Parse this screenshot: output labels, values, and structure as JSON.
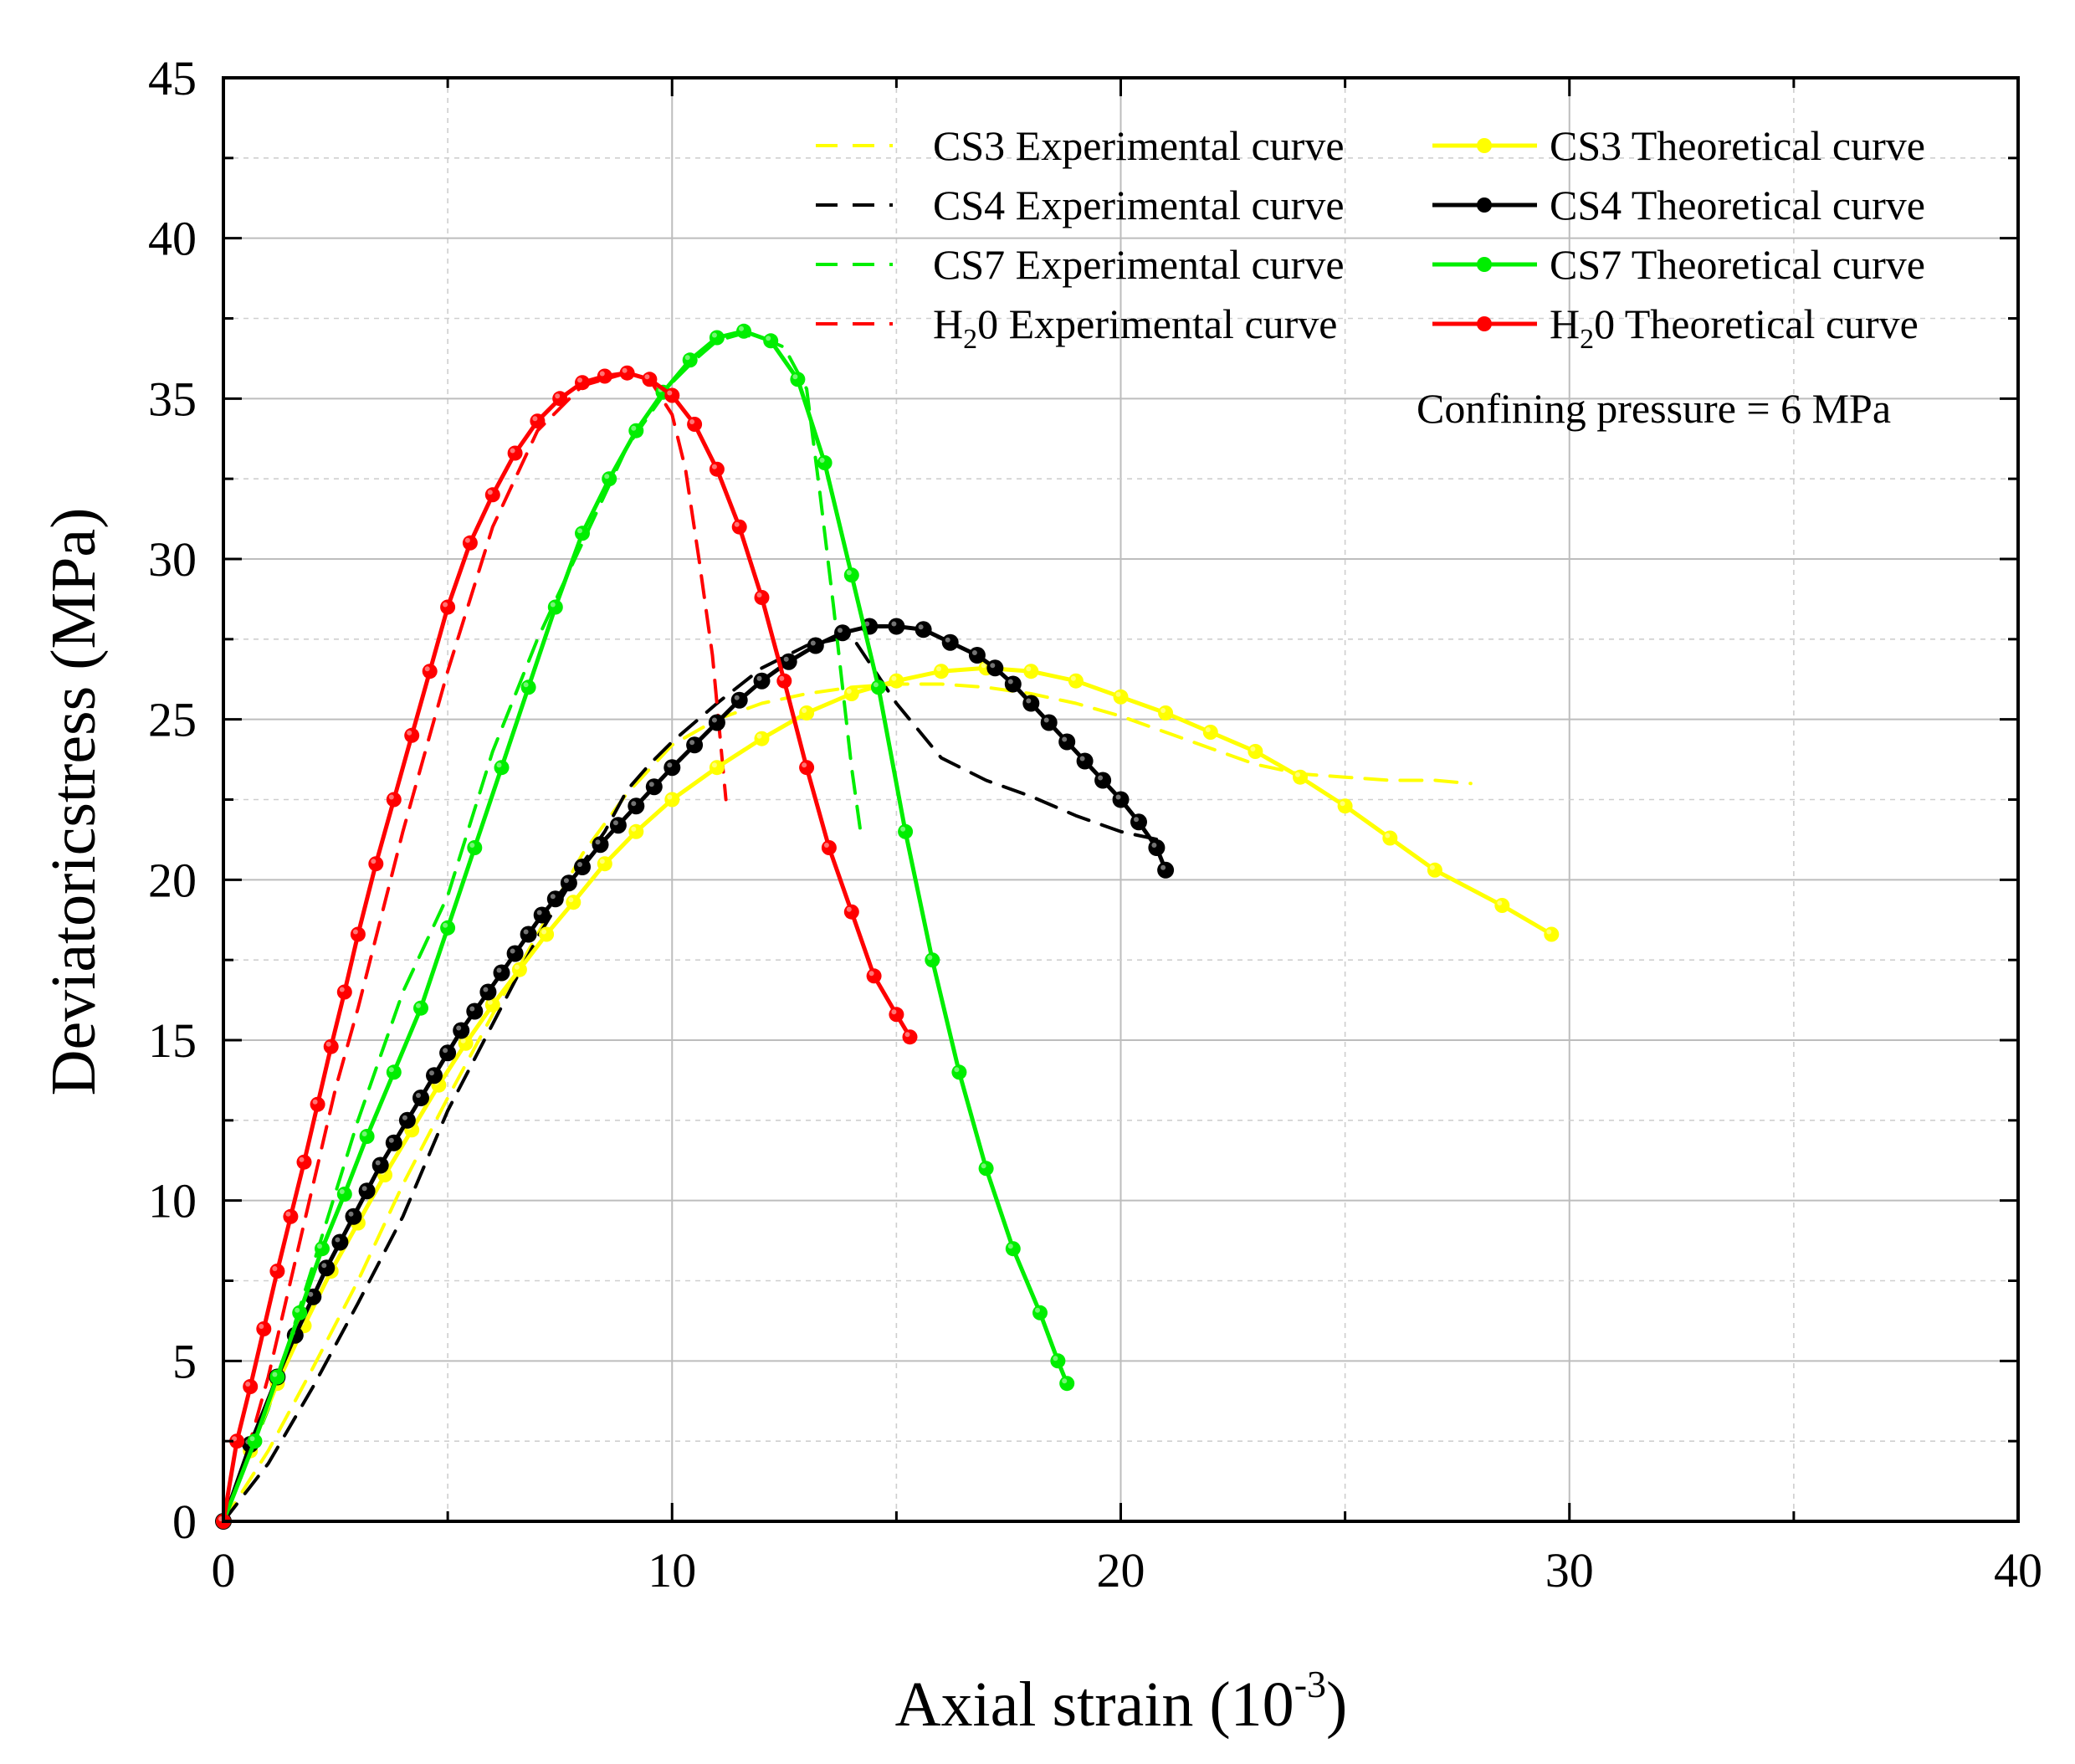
{
  "chart_data": {
    "type": "line",
    "title": "",
    "xlabel": "Axial strain (10",
    "xlabel_sup": "-3",
    "xlabel_tail": ")",
    "ylabel": "Deviatoricstress (MPa)",
    "xlim": [
      0,
      40
    ],
    "ylim": [
      0,
      45
    ],
    "xticks": [
      0,
      10,
      20,
      30,
      40
    ],
    "yticks": [
      0,
      5,
      10,
      15,
      20,
      25,
      30,
      35,
      40,
      45
    ],
    "grid": true,
    "legend_position": "top-right",
    "annotation": "Confining pressure = 6 MPa",
    "colors": {
      "CS3": "#ffff00",
      "CS4": "#000000",
      "CS7": "#00ee00",
      "H2O": "#ff0000"
    },
    "legend": [
      {
        "label": "CS3 Experimental curve",
        "color": "#ffff00",
        "style": "dashed"
      },
      {
        "label": "CS4 Experimental curve",
        "color": "#000000",
        "style": "dashed"
      },
      {
        "label": "CS7 Experimental curve",
        "color": "#00ee00",
        "style": "dashed"
      },
      {
        "label_main": "H",
        "label_sub": "2",
        "label_rest": "0  Experimental curve",
        "color": "#ff0000",
        "style": "dashed"
      },
      {
        "label": "CS3 Theoretical curve",
        "color": "#ffff00",
        "style": "solid-marker"
      },
      {
        "label": "CS4 Theoretical curve",
        "color": "#000000",
        "style": "solid-marker"
      },
      {
        "label": "CS7 Theoretical curve",
        "color": "#00ee00",
        "style": "solid-marker"
      },
      {
        "label_main": "H",
        "label_sub": "2",
        "label_rest": "0  Theoretical curve",
        "color": "#ff0000",
        "style": "solid-marker"
      }
    ],
    "series": [
      {
        "name": "CS3 Experimental curve",
        "color": "#ffff00",
        "style": "dashed",
        "x": [
          0,
          1,
          2,
          3,
          4,
          5,
          6,
          7,
          8,
          9,
          10,
          11,
          12,
          13,
          14,
          15,
          16,
          17,
          18,
          19,
          20,
          21,
          22,
          23,
          24,
          25,
          26,
          27,
          27.8
        ],
        "y": [
          0,
          2.2,
          4.8,
          7.5,
          10.5,
          13.2,
          15.8,
          18.3,
          20.8,
          22.7,
          24.2,
          25.0,
          25.5,
          25.8,
          26.0,
          26.1,
          26.1,
          26.0,
          25.8,
          25.5,
          25.1,
          24.6,
          24.1,
          23.6,
          23.3,
          23.2,
          23.1,
          23.1,
          23.0
        ]
      },
      {
        "name": "CS4 Experimental curve",
        "color": "#000000",
        "style": "dashed",
        "x": [
          0,
          1,
          2,
          3,
          4,
          5,
          6,
          7,
          8,
          8.5,
          9,
          9.5,
          10,
          11,
          12,
          13,
          14,
          15,
          16,
          17,
          18,
          19,
          20,
          21
        ],
        "y": [
          0,
          1.8,
          4.2,
          6.8,
          9.5,
          12.8,
          15.5,
          18.2,
          20.5,
          21.5,
          22.8,
          23.6,
          24.3,
          25.5,
          26.6,
          27.3,
          27.6,
          25.5,
          23.8,
          23.1,
          22.6,
          22.0,
          21.5,
          21.2
        ]
      },
      {
        "name": "CS7 Experimental curve",
        "color": "#00ee00",
        "style": "dashed",
        "x": [
          0,
          1,
          2,
          3,
          4,
          5,
          6,
          7,
          8,
          9,
          10,
          10.5,
          11,
          11.5,
          12,
          12.5,
          13,
          13.3,
          13.6,
          13.8,
          14,
          14.2
        ],
        "y": [
          0,
          3.5,
          8.0,
          12.5,
          16.5,
          19.5,
          24.0,
          27.5,
          30.5,
          33.5,
          35.5,
          36.2,
          36.8,
          37.0,
          36.9,
          36.6,
          35.3,
          32.0,
          28.5,
          26.0,
          23.5,
          21.5
        ]
      },
      {
        "name": "H2O Experimental curve",
        "color": "#ff0000",
        "style": "dashed",
        "x": [
          0,
          0.5,
          1,
          1.5,
          2,
          2.5,
          3,
          4,
          5,
          6,
          7,
          8,
          9,
          9.5,
          10,
          10.3,
          10.6,
          10.9,
          11.1,
          11.2
        ],
        "y": [
          0,
          2.0,
          4.5,
          7.5,
          10.5,
          13.5,
          16.0,
          21.5,
          26.5,
          31.0,
          34.0,
          35.4,
          35.8,
          35.6,
          34.5,
          32.8,
          30.0,
          27.0,
          24.0,
          22.5
        ]
      },
      {
        "name": "CS3 Theoretical curve",
        "color": "#ffff00",
        "style": "solid",
        "marker_size": 9,
        "x": [
          0,
          0.6,
          1.2,
          1.8,
          2.4,
          3,
          3.6,
          4.2,
          4.8,
          5.4,
          6,
          6.6,
          7.2,
          7.8,
          8.5,
          9.2,
          10,
          11,
          12,
          13,
          14,
          15,
          16,
          17,
          18,
          19,
          20,
          21,
          22,
          23,
          24,
          25,
          26,
          27,
          28.5,
          29.6
        ],
        "y": [
          0,
          2.2,
          4.3,
          6.1,
          7.8,
          9.3,
          10.8,
          12.2,
          13.6,
          14.9,
          16.1,
          17.2,
          18.3,
          19.3,
          20.5,
          21.5,
          22.5,
          23.5,
          24.4,
          25.2,
          25.8,
          26.2,
          26.5,
          26.6,
          26.5,
          26.2,
          25.7,
          25.2,
          24.6,
          24.0,
          23.2,
          22.3,
          21.3,
          20.3,
          19.2,
          18.3
        ]
      },
      {
        "name": "CS4 Theoretical curve",
        "color": "#000000",
        "style": "solid",
        "marker_size": 10,
        "x": [
          0,
          0.6,
          1.2,
          1.6,
          2,
          2.3,
          2.6,
          2.9,
          3.2,
          3.5,
          3.8,
          4.1,
          4.4,
          4.7,
          5,
          5.3,
          5.6,
          5.9,
          6.2,
          6.5,
          6.8,
          7.1,
          7.4,
          7.7,
          8,
          8.4,
          8.8,
          9.2,
          9.6,
          10,
          10.5,
          11,
          11.5,
          12,
          12.6,
          13.2,
          13.8,
          14.4,
          15,
          15.6,
          16.2,
          16.8,
          17.2,
          17.6,
          18,
          18.4,
          18.8,
          19.2,
          19.6,
          20,
          20.4,
          20.8,
          21
        ],
        "y": [
          0,
          2.4,
          4.5,
          5.8,
          7.0,
          7.9,
          8.7,
          9.5,
          10.3,
          11.1,
          11.8,
          12.5,
          13.2,
          13.9,
          14.6,
          15.3,
          15.9,
          16.5,
          17.1,
          17.7,
          18.3,
          18.9,
          19.4,
          19.9,
          20.4,
          21.1,
          21.7,
          22.3,
          22.9,
          23.5,
          24.2,
          24.9,
          25.6,
          26.2,
          26.8,
          27.3,
          27.7,
          27.9,
          27.9,
          27.8,
          27.4,
          27.0,
          26.6,
          26.1,
          25.5,
          24.9,
          24.3,
          23.7,
          23.1,
          22.5,
          21.8,
          21.0,
          20.3
        ]
      },
      {
        "name": "CS7 Theoretical curve",
        "color": "#00ee00",
        "style": "solid",
        "marker_size": 9,
        "x": [
          0,
          0.7,
          1.2,
          1.7,
          2.2,
          2.7,
          3.2,
          3.8,
          4.4,
          5,
          5.6,
          6.2,
          6.8,
          7.4,
          8,
          8.6,
          9.2,
          9.8,
          10.4,
          11,
          11.6,
          12.2,
          12.8,
          13.4,
          14,
          14.6,
          15.2,
          15.8,
          16.4,
          17,
          17.6,
          18.2,
          18.6,
          18.8
        ],
        "y": [
          0,
          2.5,
          4.5,
          6.5,
          8.5,
          10.2,
          12.0,
          14.0,
          16.0,
          18.5,
          21.0,
          23.5,
          26.0,
          28.5,
          30.8,
          32.5,
          34.0,
          35.2,
          36.2,
          36.9,
          37.1,
          36.8,
          35.6,
          33.0,
          29.5,
          26.0,
          21.5,
          17.5,
          14.0,
          11.0,
          8.5,
          6.5,
          5.0,
          4.3
        ]
      },
      {
        "name": "H2O Theoretical curve",
        "color": "#ff0000",
        "style": "solid",
        "marker_size": 9,
        "x": [
          0,
          0.3,
          0.6,
          0.9,
          1.2,
          1.5,
          1.8,
          2.1,
          2.4,
          2.7,
          3,
          3.4,
          3.8,
          4.2,
          4.6,
          5,
          5.5,
          6,
          6.5,
          7,
          7.5,
          8,
          8.5,
          9,
          9.5,
          10,
          10.5,
          11,
          11.5,
          12,
          12.5,
          13,
          13.5,
          14,
          14.5,
          15,
          15.3
        ],
        "y": [
          0,
          2.5,
          4.2,
          6.0,
          7.8,
          9.5,
          11.2,
          13.0,
          14.8,
          16.5,
          18.3,
          20.5,
          22.5,
          24.5,
          26.5,
          28.5,
          30.5,
          32.0,
          33.3,
          34.3,
          35.0,
          35.5,
          35.7,
          35.8,
          35.6,
          35.1,
          34.2,
          32.8,
          31.0,
          28.8,
          26.2,
          23.5,
          21.0,
          19.0,
          17.0,
          15.8,
          15.1
        ]
      }
    ]
  }
}
